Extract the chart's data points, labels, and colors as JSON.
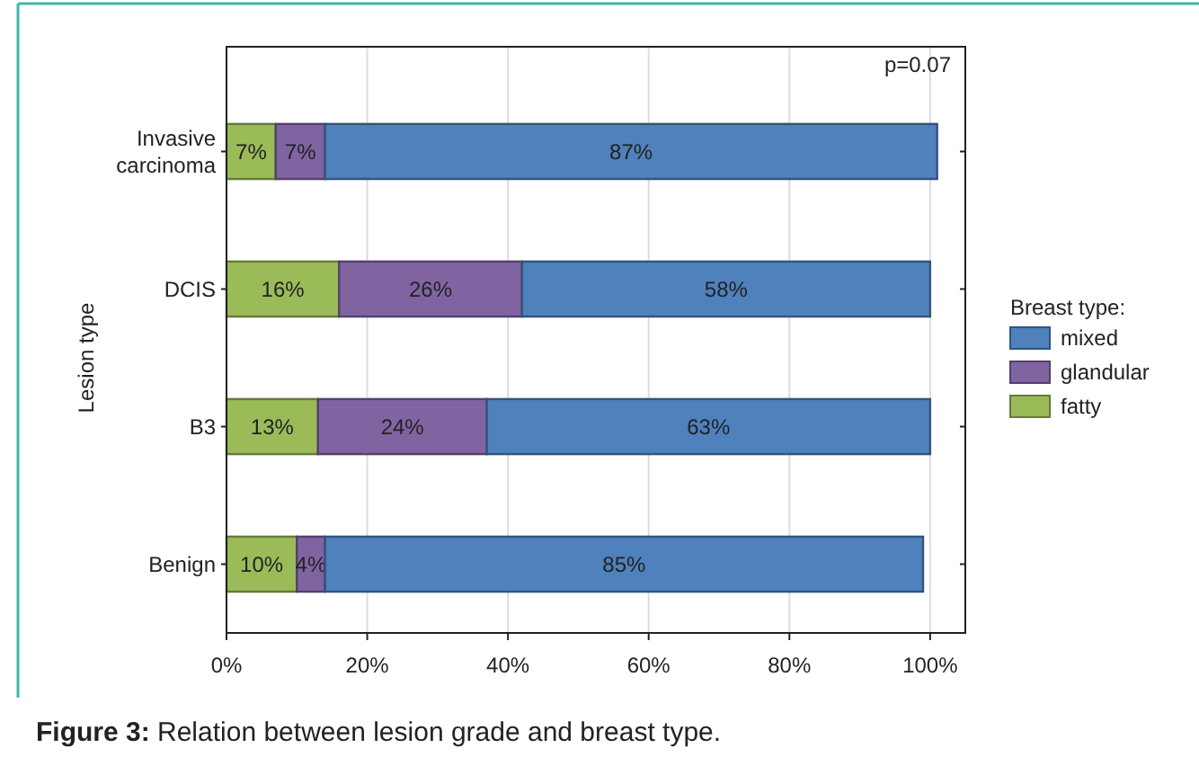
{
  "chart_data": {
    "type": "bar",
    "orientation": "horizontal",
    "stacked": true,
    "categories": [
      "Invasive carcinoma",
      "DCIS",
      "B3",
      "Benign"
    ],
    "series": [
      {
        "name": "fatty",
        "color": "#9bbb59",
        "values": [
          7,
          16,
          13,
          10
        ],
        "value_labels": [
          "7%",
          "16%",
          "13%",
          "10%"
        ]
      },
      {
        "name": "glandular",
        "color": "#8064a2",
        "values": [
          7,
          26,
          24,
          4
        ],
        "value_labels": [
          "7%",
          "26%",
          "24%",
          "4%"
        ]
      },
      {
        "name": "mixed",
        "color": "#4f81bd",
        "values": [
          87,
          58,
          63,
          85
        ],
        "value_labels": [
          "87%",
          "58%",
          "63%",
          "85%"
        ]
      }
    ],
    "xlim": [
      0,
      105
    ],
    "xticks": [
      {
        "value": 0,
        "label": "0%"
      },
      {
        "value": 20,
        "label": "20%"
      },
      {
        "value": 40,
        "label": "40%"
      },
      {
        "value": 60,
        "label": "60%"
      },
      {
        "value": 80,
        "label": "80%"
      },
      {
        "value": 100,
        "label": "100%"
      }
    ],
    "ylabel": "Lesion type",
    "legend_title": "Breast type:",
    "legend": "right",
    "grid": "x",
    "annotations": [
      "p=0.07",
      "Figure 3: Relation between lesion grade and breast type."
    ]
  }
}
